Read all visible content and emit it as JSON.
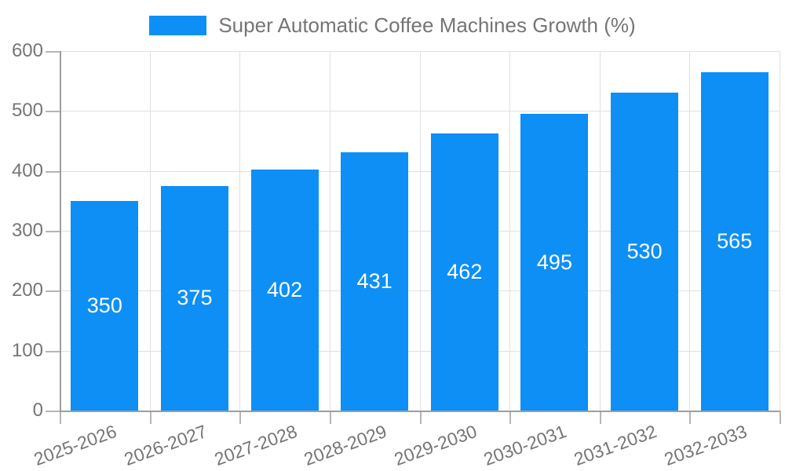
{
  "legend": {
    "label": "Super Automatic Coffee Machines Growth (%)"
  },
  "palette": {
    "bar": "#0d8ff5",
    "axis_text": "#757575",
    "grid_line": "#e0e0e0",
    "axis_line": "#9e9e9e",
    "tick_mark": "#b5b5b5",
    "value_label": "#ffffff",
    "background": "#ffffff"
  },
  "chart_data": {
    "type": "bar",
    "title": "Super Automatic Coffee Machines Growth (%)",
    "categories": [
      "2025-2026",
      "2026-2027",
      "2027-2028",
      "2028-2029",
      "2029-2030",
      "2030-2031",
      "2031-2032",
      "2032-2033"
    ],
    "values": [
      350,
      375,
      402,
      431,
      462,
      495,
      530,
      565
    ],
    "xlabel": "",
    "ylabel": "",
    "ylim": [
      0,
      600
    ],
    "yticks": [
      0,
      100,
      200,
      300,
      400,
      500,
      600
    ],
    "grid": true,
    "legend_position": "top-center",
    "bar_color": "#0d8ff5",
    "data_label_position": "inside-center",
    "x_label_rotation_deg": -20
  }
}
